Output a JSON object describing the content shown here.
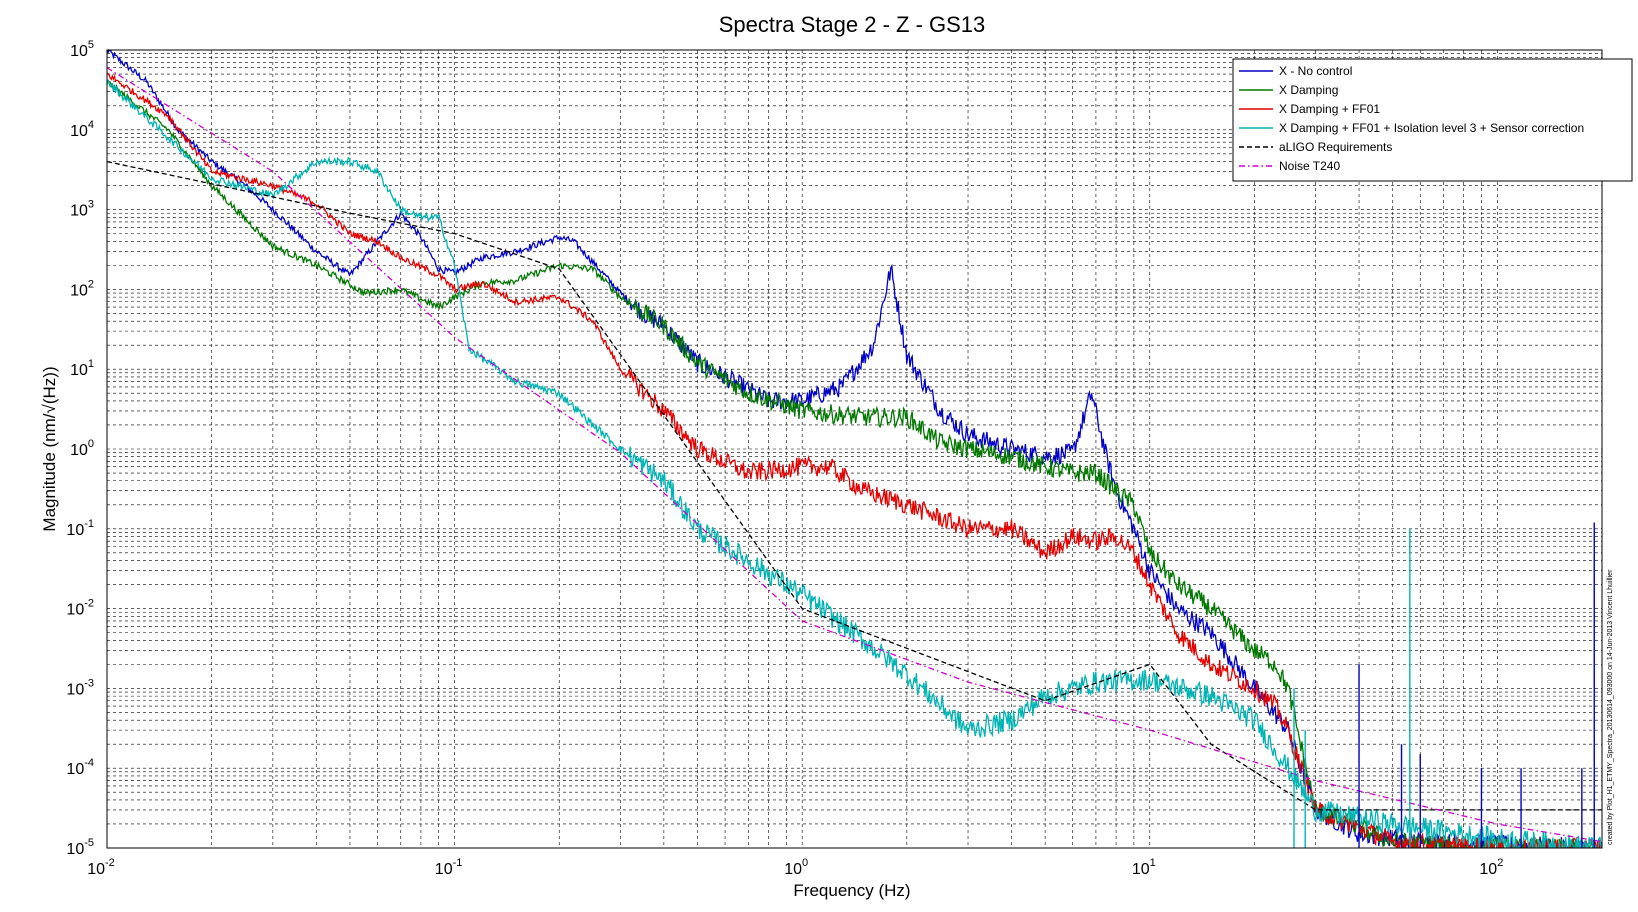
{
  "chart_data": {
    "type": "line",
    "title": "Spectra Stage 2 - Z - GS13",
    "xlabel": "Frequency (Hz)",
    "ylabel": "Magnitude (nm/√(Hz))",
    "x_scale": "log",
    "y_scale": "log",
    "xlim": [
      0.01,
      200
    ],
    "ylim": [
      1e-05,
      100000
    ],
    "grid": true,
    "legend_position": "top-right",
    "x_ticks": [
      {
        "base": "10",
        "exp": "-2",
        "value": 0.01
      },
      {
        "base": "10",
        "exp": "-1",
        "value": 0.1
      },
      {
        "base": "10",
        "exp": "0",
        "value": 1
      },
      {
        "base": "10",
        "exp": "1",
        "value": 10
      },
      {
        "base": "10",
        "exp": "2",
        "value": 100
      }
    ],
    "y_ticks": [
      {
        "base": "10",
        "exp": "5",
        "value": 100000
      },
      {
        "base": "10",
        "exp": "4",
        "value": 10000
      },
      {
        "base": "10",
        "exp": "3",
        "value": 1000
      },
      {
        "base": "10",
        "exp": "2",
        "value": 100
      },
      {
        "base": "10",
        "exp": "1",
        "value": 10
      },
      {
        "base": "10",
        "exp": "0",
        "value": 1
      },
      {
        "base": "10",
        "exp": "-1",
        "value": 0.1
      },
      {
        "base": "10",
        "exp": "-2",
        "value": 0.01
      },
      {
        "base": "10",
        "exp": "-3",
        "value": 0.001
      },
      {
        "base": "10",
        "exp": "-4",
        "value": 0.0001
      },
      {
        "base": "10",
        "exp": "-5",
        "value": 1e-05
      }
    ],
    "credit": "created by Plot_H1_ETMY_Spectra_20130614_093000 on 14-Jun-2013 Vincent Lhuillier",
    "series": [
      {
        "name": "X - No control",
        "color": "#0000c8",
        "style": "solid",
        "noise": 0.12,
        "points": [
          [
            0.01,
            100000
          ],
          [
            0.013,
            40000
          ],
          [
            0.016,
            10000
          ],
          [
            0.02,
            4000
          ],
          [
            0.025,
            2000
          ],
          [
            0.03,
            1000
          ],
          [
            0.04,
            300
          ],
          [
            0.05,
            150
          ],
          [
            0.06,
            400
          ],
          [
            0.07,
            900
          ],
          [
            0.08,
            450
          ],
          [
            0.09,
            180
          ],
          [
            0.1,
            160
          ],
          [
            0.12,
            250
          ],
          [
            0.15,
            300
          ],
          [
            0.2,
            450
          ],
          [
            0.22,
            400
          ],
          [
            0.25,
            220
          ],
          [
            0.3,
            90
          ],
          [
            0.35,
            50
          ],
          [
            0.4,
            35
          ],
          [
            0.5,
            12
          ],
          [
            0.6,
            8
          ],
          [
            0.8,
            4
          ],
          [
            1,
            4
          ],
          [
            1.3,
            6
          ],
          [
            1.6,
            20
          ],
          [
            1.8,
            180
          ],
          [
            2,
            15
          ],
          [
            2.5,
            3
          ],
          [
            3,
            1.5
          ],
          [
            4,
            1
          ],
          [
            5,
            0.8
          ],
          [
            6,
            0.9
          ],
          [
            6.8,
            5
          ],
          [
            7.5,
            0.8
          ],
          [
            8,
            0.3
          ],
          [
            9,
            0.1
          ],
          [
            10,
            0.03
          ],
          [
            12,
            0.01
          ],
          [
            15,
            0.005
          ],
          [
            20,
            0.001
          ],
          [
            25,
            0.0003
          ],
          [
            30,
            3e-05
          ],
          [
            40,
            1.5e-05
          ],
          [
            60,
            1.2e-05
          ],
          [
            100,
            1.1e-05
          ],
          [
            200,
            1e-05
          ]
        ]
      },
      {
        "name": "X Damping",
        "color": "#007800",
        "style": "solid",
        "noise": 0.12,
        "points": [
          [
            0.01,
            40000
          ],
          [
            0.015,
            10000
          ],
          [
            0.02,
            2000
          ],
          [
            0.03,
            350
          ],
          [
            0.04,
            200
          ],
          [
            0.055,
            90
          ],
          [
            0.07,
            100
          ],
          [
            0.09,
            60
          ],
          [
            0.1,
            80
          ],
          [
            0.12,
            120
          ],
          [
            0.15,
            130
          ],
          [
            0.2,
            200
          ],
          [
            0.25,
            180
          ],
          [
            0.3,
            80
          ],
          [
            0.4,
            35
          ],
          [
            0.5,
            12
          ],
          [
            0.7,
            5
          ],
          [
            1,
            3
          ],
          [
            1.5,
            2.5
          ],
          [
            2,
            2.5
          ],
          [
            2.5,
            1.2
          ],
          [
            3,
            1
          ],
          [
            4,
            0.8
          ],
          [
            5,
            0.6
          ],
          [
            6,
            0.5
          ],
          [
            7,
            0.5
          ],
          [
            8,
            0.3
          ],
          [
            9,
            0.2
          ],
          [
            10,
            0.05
          ],
          [
            12,
            0.02
          ],
          [
            15,
            0.01
          ],
          [
            20,
            0.003
          ],
          [
            23,
            0.002
          ],
          [
            25,
            0.001
          ],
          [
            30,
            3e-05
          ],
          [
            50,
            1.2e-05
          ],
          [
            100,
            1e-05
          ],
          [
            200,
            1e-05
          ]
        ]
      },
      {
        "name": "X Damping + FF01",
        "color": "#e60000",
        "style": "solid",
        "noise": 0.12,
        "points": [
          [
            0.01,
            50000
          ],
          [
            0.015,
            15000
          ],
          [
            0.02,
            3000
          ],
          [
            0.03,
            2000
          ],
          [
            0.04,
            1200
          ],
          [
            0.05,
            500
          ],
          [
            0.06,
            400
          ],
          [
            0.07,
            250
          ],
          [
            0.09,
            150
          ],
          [
            0.1,
            100
          ],
          [
            0.12,
            120
          ],
          [
            0.15,
            70
          ],
          [
            0.2,
            80
          ],
          [
            0.25,
            40
          ],
          [
            0.3,
            10
          ],
          [
            0.4,
            3
          ],
          [
            0.5,
            1
          ],
          [
            0.7,
            0.5
          ],
          [
            1,
            0.6
          ],
          [
            1.2,
            0.6
          ],
          [
            1.5,
            0.3
          ],
          [
            2,
            0.2
          ],
          [
            3,
            0.1
          ],
          [
            4,
            0.1
          ],
          [
            5,
            0.05
          ],
          [
            6,
            0.08
          ],
          [
            7,
            0.07
          ],
          [
            8,
            0.08
          ],
          [
            9,
            0.05
          ],
          [
            10,
            0.02
          ],
          [
            12,
            0.005
          ],
          [
            15,
            0.002
          ],
          [
            20,
            0.001
          ],
          [
            23,
            0.0006
          ],
          [
            25,
            0.0003
          ],
          [
            30,
            3e-05
          ],
          [
            50,
            1.2e-05
          ],
          [
            100,
            1e-05
          ],
          [
            200,
            1e-05
          ]
        ]
      },
      {
        "name": "X Damping + FF01 + Isolation level 3 + Sensor correction",
        "color": "#00b4b4",
        "style": "solid",
        "noise": 0.14,
        "points": [
          [
            0.01,
            40000
          ],
          [
            0.015,
            8000
          ],
          [
            0.02,
            2500
          ],
          [
            0.03,
            1500
          ],
          [
            0.04,
            4000
          ],
          [
            0.05,
            4000
          ],
          [
            0.06,
            3000
          ],
          [
            0.07,
            1000
          ],
          [
            0.08,
            800
          ],
          [
            0.09,
            800
          ],
          [
            0.1,
            200
          ],
          [
            0.11,
            18
          ],
          [
            0.15,
            7
          ],
          [
            0.2,
            5
          ],
          [
            0.25,
            2
          ],
          [
            0.3,
            1
          ],
          [
            0.4,
            0.4
          ],
          [
            0.5,
            0.1
          ],
          [
            0.7,
            0.04
          ],
          [
            1,
            0.015
          ],
          [
            1.5,
            0.004
          ],
          [
            2,
            0.0015
          ],
          [
            3,
            0.0003
          ],
          [
            4,
            0.0004
          ],
          [
            5,
            0.0008
          ],
          [
            7,
            0.0012
          ],
          [
            10,
            0.0013
          ],
          [
            15,
            0.0008
          ],
          [
            20,
            0.0004
          ],
          [
            25,
            0.0001
          ],
          [
            30,
            3e-05
          ],
          [
            50,
            2e-05
          ],
          [
            100,
            1.3e-05
          ],
          [
            200,
            1e-05
          ]
        ]
      },
      {
        "name": "aLIGO Requirements",
        "color": "#000000",
        "style": "dashed",
        "noise": 0,
        "points": [
          [
            0.01,
            4000
          ],
          [
            0.05,
            900
          ],
          [
            0.1,
            500
          ],
          [
            0.2,
            180
          ],
          [
            1,
            0.01
          ],
          [
            5,
            0.0007
          ],
          [
            10,
            0.002
          ],
          [
            15,
            0.0002
          ],
          [
            30,
            3e-05
          ],
          [
            200,
            3e-05
          ]
        ]
      },
      {
        "name": "Noise T240",
        "color": "#d200d2",
        "style": "dashdot",
        "noise": 0,
        "points": [
          [
            0.01,
            60000
          ],
          [
            0.03,
            3000
          ],
          [
            0.1,
            25
          ],
          [
            0.3,
            0.9
          ],
          [
            1,
            0.007
          ],
          [
            3,
            0.0012
          ],
          [
            10,
            0.0003
          ],
          [
            30,
            7e-05
          ],
          [
            100,
            2e-05
          ],
          [
            200,
            1.2e-05
          ]
        ]
      }
    ],
    "spikes": [
      {
        "x": 40,
        "ytop": 0.002,
        "color": "#0000c8"
      },
      {
        "x": 53,
        "ytop": 0.0002,
        "color": "#0000c8"
      },
      {
        "x": 56,
        "ytop": 0.1,
        "color": "#00b4b4"
      },
      {
        "x": 60,
        "ytop": 0.00015,
        "color": "#0000c8"
      },
      {
        "x": 90,
        "ytop": 0.0001,
        "color": "#0000c8"
      },
      {
        "x": 117,
        "ytop": 0.0001,
        "color": "#0000c8"
      },
      {
        "x": 175,
        "ytop": 0.0001,
        "color": "#0000c8"
      },
      {
        "x": 190,
        "ytop": 0.12,
        "color": "#0000c8"
      },
      {
        "x": 26,
        "ytop": 0.001,
        "color": "#00b4b4"
      },
      {
        "x": 28,
        "ytop": 0.0003,
        "color": "#00b4b4"
      }
    ]
  }
}
